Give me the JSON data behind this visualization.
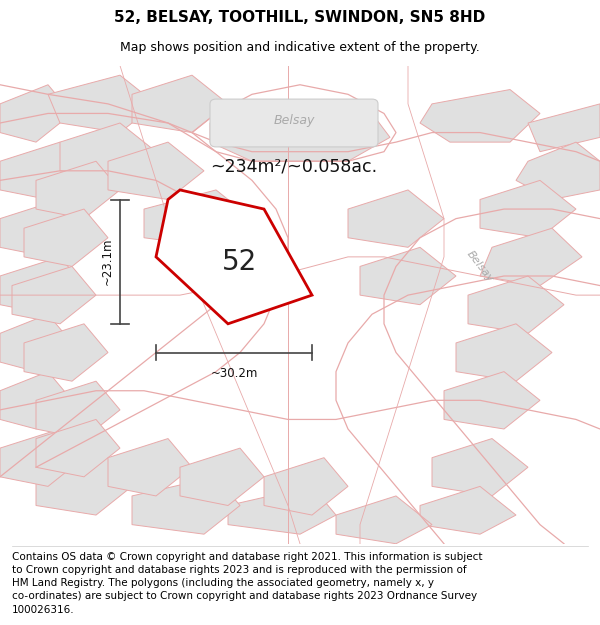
{
  "title": "52, BELSAY, TOOTHILL, SWINDON, SN5 8HD",
  "subtitle": "Map shows position and indicative extent of the property.",
  "area_text": "~234m²/~0.058ac.",
  "label_52": "52",
  "watermark1": "Belsay",
  "watermark2": "Belsay",
  "dim_width": "~30.2m",
  "dim_height": "~23.1m",
  "footer": "Contains OS data © Crown copyright and database right 2021. This information is subject\nto Crown copyright and database rights 2023 and is reproduced with the permission of\nHM Land Registry. The polygons (including the associated geometry, namely x, y\nco-ordinates) are subject to Crown copyright and database rights 2023 Ordnance Survey\n100026316.",
  "map_bg": "#ffffff",
  "building_fill": "#e0e0e0",
  "building_edge": "#e8aaaa",
  "road_color": "#e8aaaa",
  "plot_fill": "#ffffff",
  "plot_edge": "#cc0000",
  "title_fontsize": 11,
  "subtitle_fontsize": 9,
  "footer_fontsize": 7.5
}
